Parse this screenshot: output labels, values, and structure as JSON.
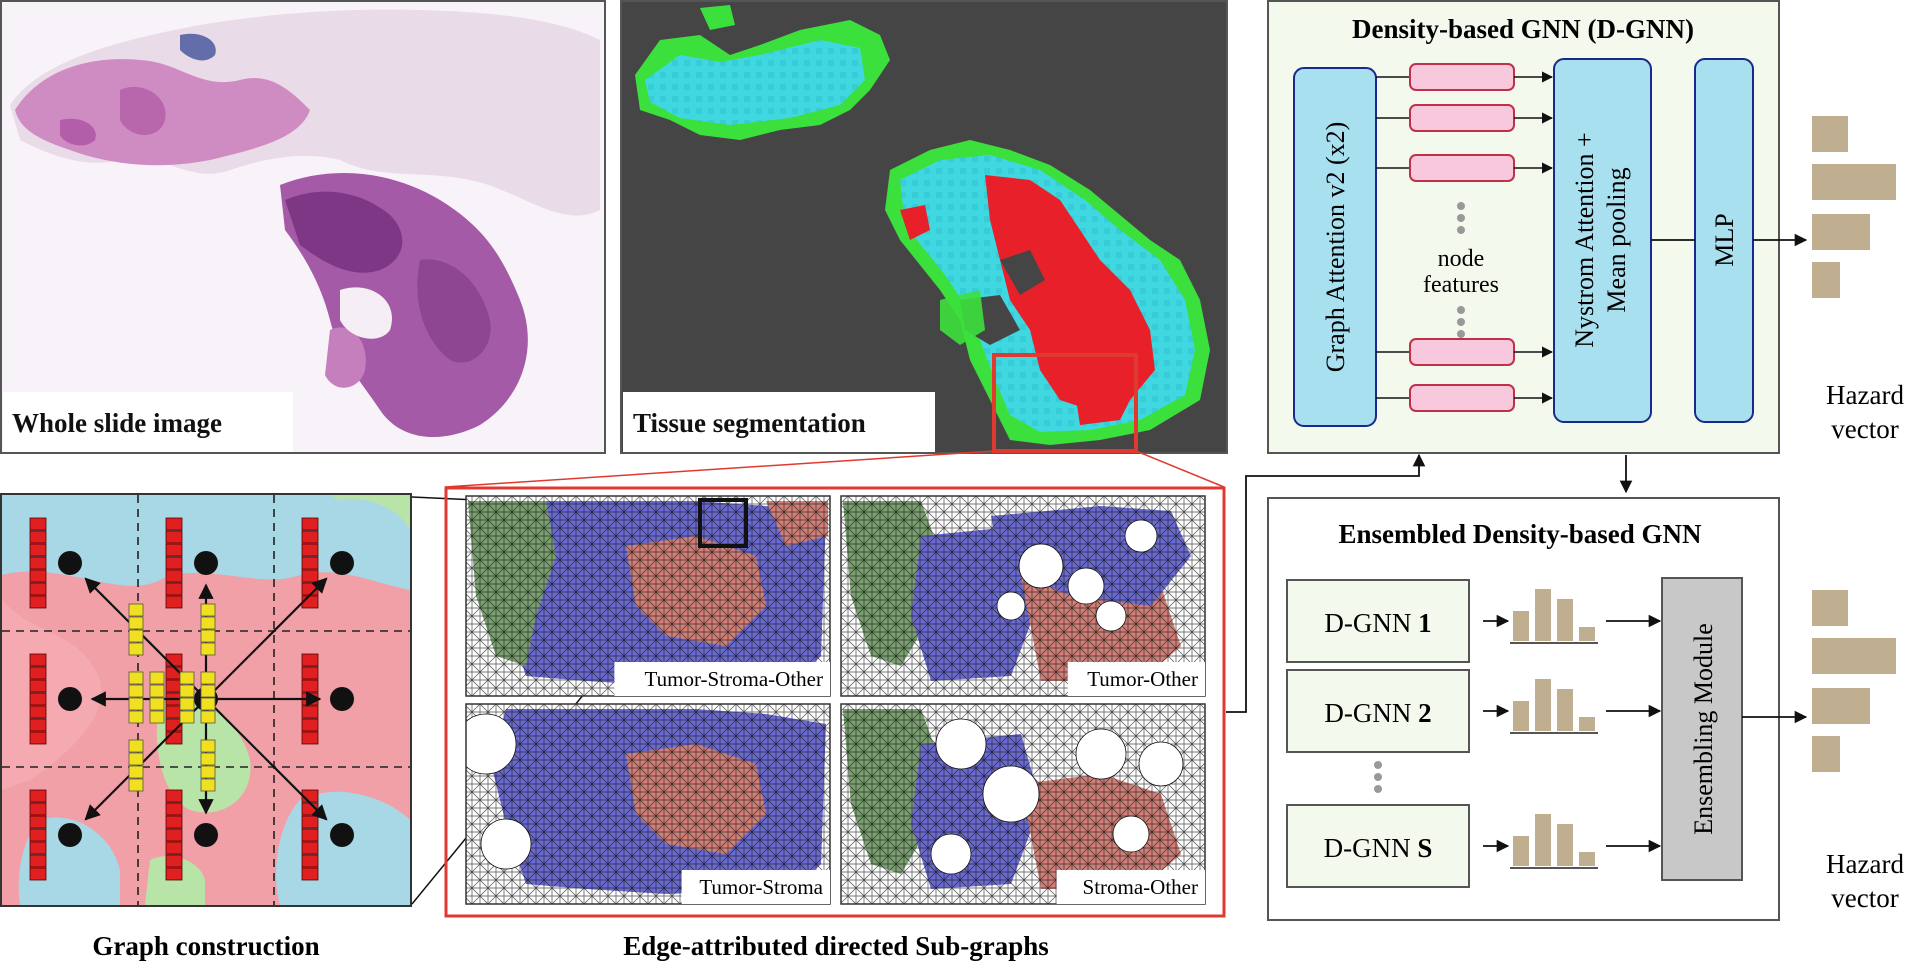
{
  "panels": {
    "wsi_label": "Whole slide image",
    "seg_label": "Tissue segmentation",
    "graph_construction_caption": "Graph construction",
    "subgraphs_caption": "Edge-attributed directed Sub-graphs",
    "subgraph_labels": [
      "Tumor-Stroma-Other",
      "Tumor-Other",
      "Tumor-Stroma",
      "Stroma-Other"
    ]
  },
  "dgnn": {
    "title": "Density-based GNN (D-GNN)",
    "gat_label": "Graph Attention v2 (x2)",
    "node_features_line1": "node",
    "node_features_line2": "features",
    "nystrom_line1": "Nystrom Attention +",
    "nystrom_line2": "Mean pooling",
    "mlp_label": "MLP",
    "hazard_line1": "Hazard",
    "hazard_line2": "vector"
  },
  "ensemble": {
    "title": "Ensembled Density-based GNN",
    "models": [
      {
        "prefix": "D-GNN ",
        "index": "1"
      },
      {
        "prefix": "D-GNN ",
        "index": "2"
      },
      {
        "prefix": "D-GNN ",
        "index": "S"
      }
    ],
    "module_label": "Ensembling Module",
    "hazard_line1": "Hazard",
    "hazard_line2": "vector"
  },
  "colors": {
    "he_pink": "#c978b8",
    "he_purple": "#8a3d8e",
    "seg_bg": "#454545",
    "seg_cyan": "#40d8e0",
    "seg_red": "#e8202a",
    "seg_green": "#3ce03c",
    "red_frame": "#e03a30",
    "sub_blue": "#6a6ad0",
    "sub_salmon": "#d08078",
    "sub_green": "#7aa070",
    "box_fill": "#f4f9ee",
    "node_blue": "#a8e0f0",
    "feature_pink": "#f8c8dc",
    "hazard_bar": "#bfae90",
    "module_gray": "#c8c8c8",
    "feat_red": "#e02020",
    "feat_yellow": "#f0e020"
  }
}
